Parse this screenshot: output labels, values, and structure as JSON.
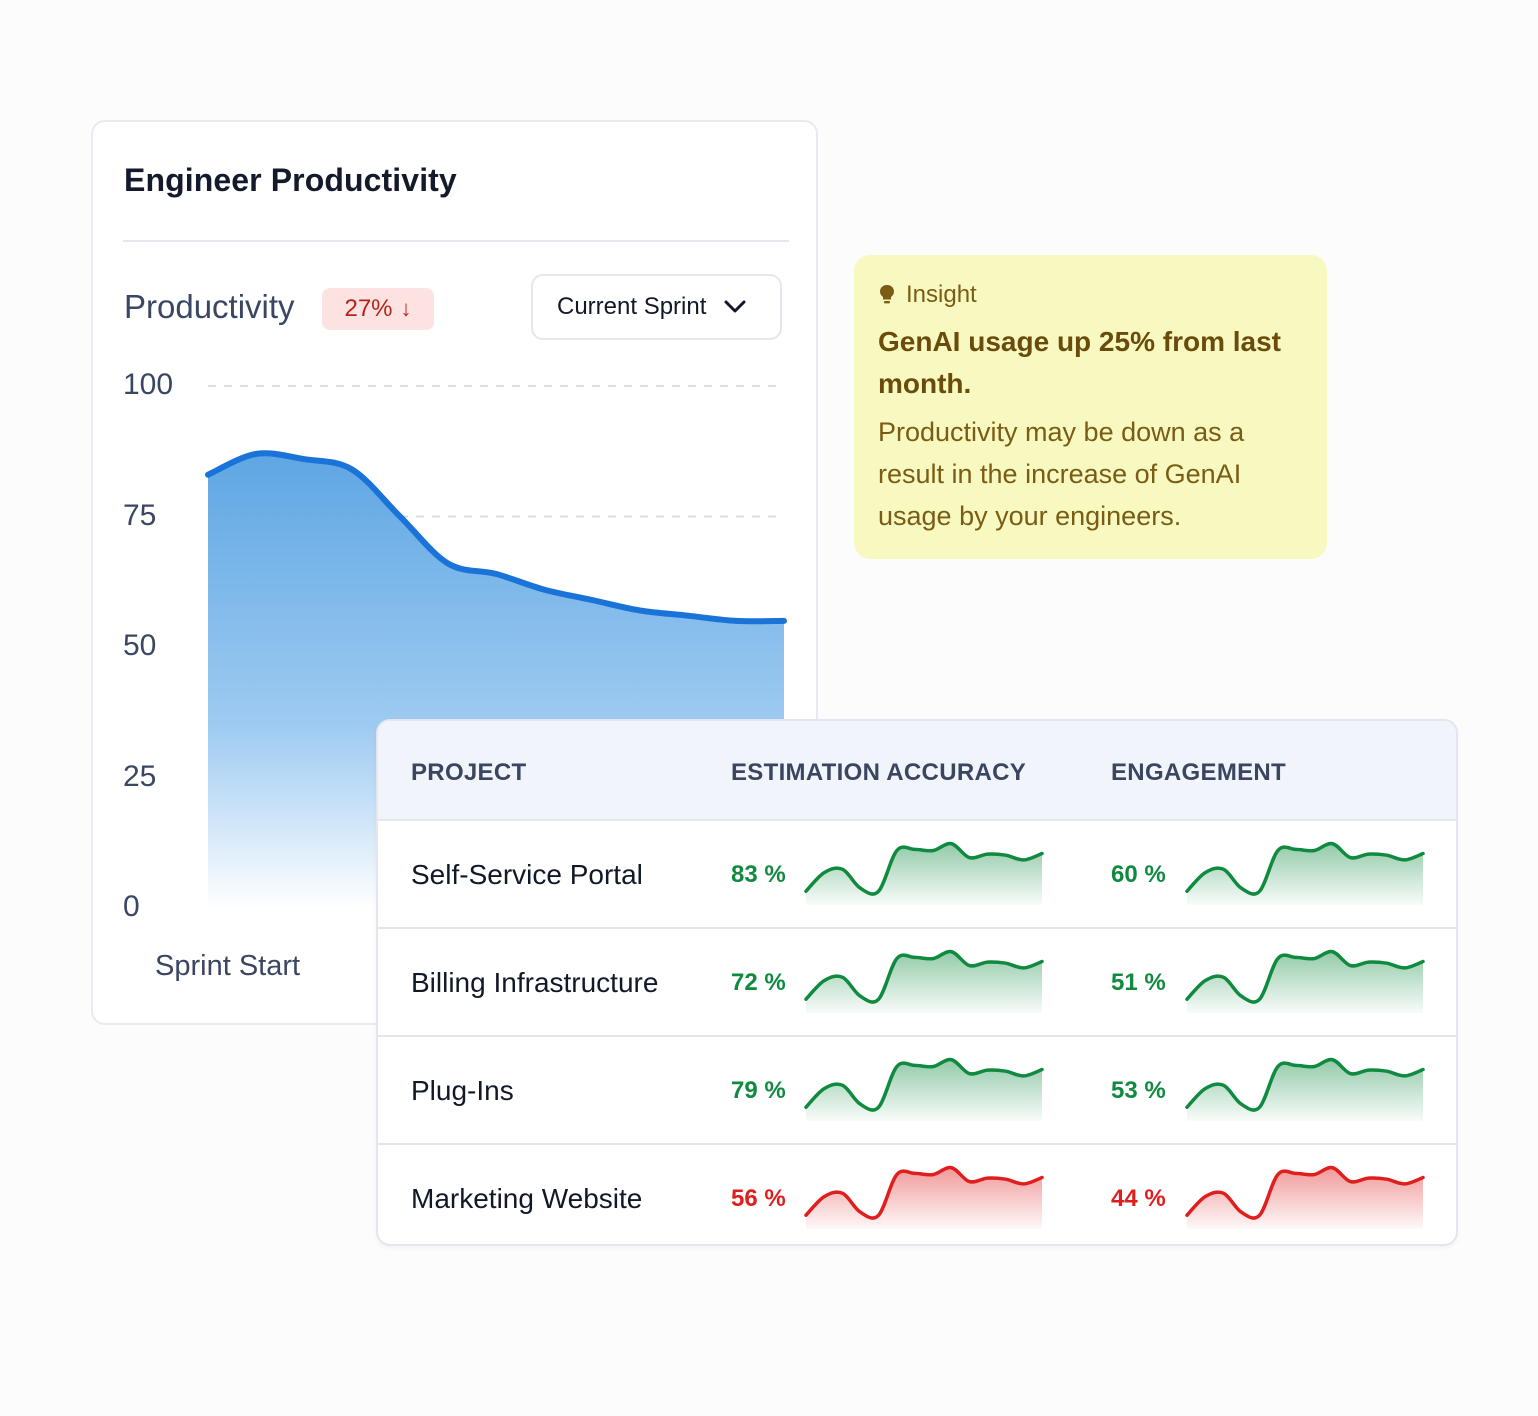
{
  "productivity_card": {
    "title": "Engineer Productivity",
    "metric_label": "Productivity",
    "delta_text": "27%",
    "delta_icon": "arrow-down-icon",
    "range_select": {
      "selected": "Current Sprint",
      "icon": "chevron-down-icon"
    }
  },
  "chart_data": {
    "type": "area",
    "title": "",
    "ylabel": "",
    "xlabel": "",
    "ylim": [
      0,
      100
    ],
    "y_ticks": [
      "100",
      "75",
      "50",
      "25",
      "0"
    ],
    "x_ticks": [
      "Sprint Start"
    ],
    "grid": "dashed horizontal",
    "color": "#1a73d9",
    "x": [
      0,
      1,
      2,
      3,
      4,
      5,
      6,
      7,
      8,
      9,
      10,
      11,
      12
    ],
    "values": [
      83,
      87,
      86,
      84,
      75,
      66,
      64,
      61,
      59,
      57,
      56,
      55,
      55
    ]
  },
  "insight": {
    "label": "Insight",
    "icon": "lightbulb-icon",
    "headline": "GenAI usage up 25% from last month.",
    "body": "Productivity may be down as a result in the increase of GenAI usage by your engineers."
  },
  "projects_table": {
    "columns": [
      "PROJECT",
      "ESTIMATION ACCURACY",
      "ENGAGEMENT"
    ],
    "rows": [
      {
        "project": "Self-Service Portal",
        "accuracy": "83 %",
        "accuracy_status": "good",
        "engagement": "60 %",
        "engagement_status": "good"
      },
      {
        "project": "Billing Infrastructure",
        "accuracy": "72 %",
        "accuracy_status": "good",
        "engagement": "51 %",
        "engagement_status": "good"
      },
      {
        "project": "Plug-Ins",
        "accuracy": "79 %",
        "accuracy_status": "good",
        "engagement": "53 %",
        "engagement_status": "good"
      },
      {
        "project": "Marketing Website",
        "accuracy": "56 %",
        "accuracy_status": "bad",
        "engagement": "44 %",
        "engagement_status": "bad"
      }
    ],
    "sparkline_values": [
      10,
      42,
      48,
      15,
      10,
      80,
      82,
      80,
      92,
      68,
      74,
      72,
      64,
      75
    ]
  },
  "colors": {
    "good": "#0f8a3f",
    "bad": "#e01e1e",
    "badge_bg": "#fde2e2",
    "insight_bg": "#f7f9c1",
    "chart_line": "#1a73d9"
  }
}
